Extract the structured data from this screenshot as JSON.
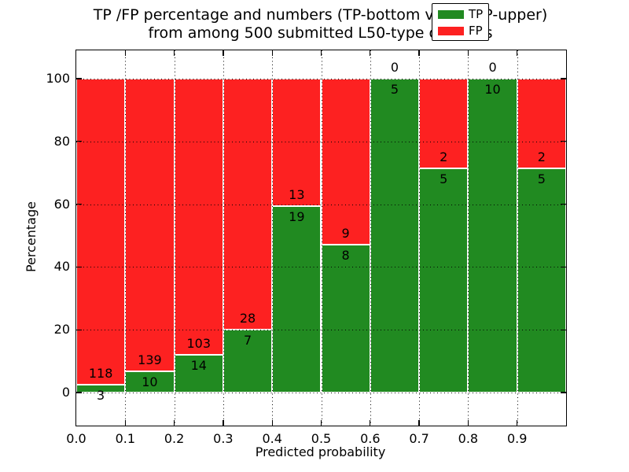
{
  "title": {
    "line1": "TP /FP percentage and numbers (TP-bottom value, FP-upper)",
    "line2": "from among 500 submitted L50-type contacts"
  },
  "colors": {
    "tp_green": "#218a21",
    "fp_red": "#fd2121",
    "grid": "#000000",
    "background": "#ffffff"
  },
  "chart_data": {
    "type": "bar",
    "stacked": true,
    "normalization": "each bin scaled to 100%, bar height shows TP percentage of bin",
    "title": "TP /FP percentage and numbers (TP-bottom value, FP-upper) from among 500 submitted L50-type contacts",
    "xlabel": "Predicted probability",
    "ylabel": "Percentage",
    "total_submitted": 500,
    "bin_width": 0.1,
    "bin_starts": [
      0.0,
      0.1,
      0.2,
      0.3,
      0.4,
      0.5,
      0.6,
      0.7,
      0.8,
      0.9
    ],
    "x_tick_labels": [
      "0.0",
      "0.1",
      "0.2",
      "0.3",
      "0.4",
      "0.5",
      "0.6",
      "0.7",
      "0.8",
      "0.9"
    ],
    "y_ticks": [
      0,
      20,
      40,
      60,
      80,
      100
    ],
    "xlim": [
      0.0,
      1.0
    ],
    "ylim": [
      -10.5,
      109.0
    ],
    "grid": "dotted black, horizontal at y ticks and vertical at bin edges, drawn over bars",
    "legend_position": "upper-right",
    "series": [
      {
        "name": "TP",
        "color": "#218a21",
        "counts": [
          3,
          10,
          14,
          7,
          19,
          8,
          5,
          5,
          10,
          5
        ]
      },
      {
        "name": "FP",
        "color": "#fd2121",
        "counts": [
          118,
          139,
          103,
          28,
          13,
          9,
          0,
          2,
          0,
          2
        ]
      }
    ],
    "tp_percent_per_bin": [
      2.48,
      6.71,
      11.97,
      20.0,
      59.38,
      47.06,
      100.0,
      71.43,
      100.0,
      71.43
    ]
  }
}
